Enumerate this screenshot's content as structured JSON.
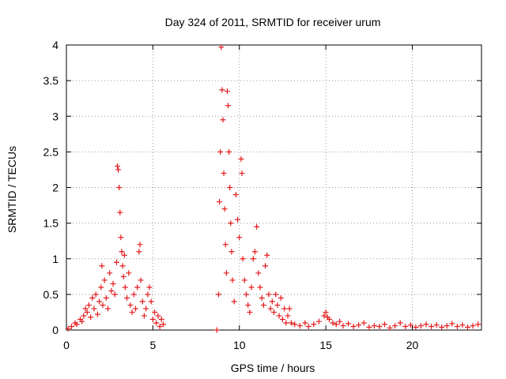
{
  "chart_data": {
    "type": "scatter",
    "title": "Day 324 of 2011, SRMTID for receiver urum",
    "xlabel": "GPS time / hours",
    "ylabel": "SRMTID / TECUs",
    "xlim": [
      0,
      24
    ],
    "ylim": [
      0,
      4
    ],
    "x_ticks": [
      0,
      5,
      10,
      15,
      20
    ],
    "x_tick_labels": [
      "0",
      "5",
      "10",
      "15",
      "20"
    ],
    "y_ticks": [
      0,
      0.5,
      1,
      1.5,
      2,
      2.5,
      3,
      3.5,
      4
    ],
    "y_tick_labels": [
      "0",
      "0.5",
      "1",
      "1.5",
      "2",
      "2.5",
      "3",
      "3.5",
      "4"
    ],
    "grid": true,
    "marker": "+",
    "colors": {
      "series": "#e41a1c",
      "grid": "#999999",
      "axis": "#000000"
    },
    "series": [
      {
        "name": "SRMTID",
        "points": [
          [
            0.1,
            0.02
          ],
          [
            0.3,
            0.05
          ],
          [
            0.5,
            0.1
          ],
          [
            0.6,
            0.08
          ],
          [
            0.8,
            0.15
          ],
          [
            0.9,
            0.12
          ],
          [
            1.0,
            0.2
          ],
          [
            1.1,
            0.3
          ],
          [
            1.2,
            0.25
          ],
          [
            1.3,
            0.35
          ],
          [
            1.4,
            0.18
          ],
          [
            1.5,
            0.45
          ],
          [
            1.6,
            0.3
          ],
          [
            1.7,
            0.5
          ],
          [
            1.8,
            0.22
          ],
          [
            1.9,
            0.4
          ],
          [
            2.0,
            0.6
          ],
          [
            2.05,
            0.9
          ],
          [
            2.1,
            0.35
          ],
          [
            2.2,
            0.7
          ],
          [
            2.3,
            0.45
          ],
          [
            2.4,
            0.3
          ],
          [
            2.5,
            0.8
          ],
          [
            2.6,
            0.55
          ],
          [
            2.7,
            0.65
          ],
          [
            2.8,
            0.5
          ],
          [
            2.9,
            0.95
          ],
          [
            2.95,
            2.3
          ],
          [
            3.0,
            2.25
          ],
          [
            3.05,
            2.0
          ],
          [
            3.1,
            1.65
          ],
          [
            3.15,
            1.3
          ],
          [
            3.2,
            1.1
          ],
          [
            3.25,
            0.9
          ],
          [
            3.3,
            0.75
          ],
          [
            3.35,
            1.05
          ],
          [
            3.4,
            0.6
          ],
          [
            3.5,
            0.45
          ],
          [
            3.6,
            0.8
          ],
          [
            3.7,
            0.35
          ],
          [
            3.8,
            0.25
          ],
          [
            3.9,
            0.5
          ],
          [
            4.0,
            0.3
          ],
          [
            4.1,
            0.6
          ],
          [
            4.2,
            1.1
          ],
          [
            4.25,
            1.2
          ],
          [
            4.3,
            0.7
          ],
          [
            4.4,
            0.4
          ],
          [
            4.5,
            0.2
          ],
          [
            4.6,
            0.3
          ],
          [
            4.7,
            0.5
          ],
          [
            4.8,
            0.6
          ],
          [
            4.9,
            0.4
          ],
          [
            5.0,
            0.15
          ],
          [
            5.1,
            0.25
          ],
          [
            5.2,
            0.1
          ],
          [
            5.3,
            0.2
          ],
          [
            5.4,
            0.05
          ],
          [
            5.5,
            0.15
          ],
          [
            5.6,
            0.08
          ],
          [
            8.7,
            0.0
          ],
          [
            8.8,
            0.5
          ],
          [
            8.85,
            1.8
          ],
          [
            8.9,
            2.5
          ],
          [
            8.95,
            3.97
          ],
          [
            9.0,
            3.37
          ],
          [
            9.05,
            2.95
          ],
          [
            9.1,
            2.2
          ],
          [
            9.15,
            1.7
          ],
          [
            9.2,
            1.2
          ],
          [
            9.25,
            0.8
          ],
          [
            9.3,
            3.35
          ],
          [
            9.35,
            3.15
          ],
          [
            9.4,
            2.5
          ],
          [
            9.45,
            2.0
          ],
          [
            9.5,
            1.5
          ],
          [
            9.55,
            1.1
          ],
          [
            9.6,
            0.7
          ],
          [
            9.7,
            0.4
          ],
          [
            9.8,
            1.9
          ],
          [
            9.9,
            1.55
          ],
          [
            10.0,
            1.3
          ],
          [
            10.1,
            2.4
          ],
          [
            10.15,
            2.2
          ],
          [
            10.2,
            1.0
          ],
          [
            10.3,
            0.7
          ],
          [
            10.4,
            0.5
          ],
          [
            10.5,
            0.35
          ],
          [
            10.6,
            0.25
          ],
          [
            10.7,
            0.6
          ],
          [
            10.8,
            1.0
          ],
          [
            10.9,
            1.1
          ],
          [
            11.0,
            1.45
          ],
          [
            11.1,
            0.8
          ],
          [
            11.2,
            0.6
          ],
          [
            11.3,
            0.45
          ],
          [
            11.4,
            0.35
          ],
          [
            11.5,
            0.9
          ],
          [
            11.6,
            1.05
          ],
          [
            11.7,
            0.5
          ],
          [
            11.8,
            0.3
          ],
          [
            11.9,
            0.4
          ],
          [
            12.0,
            0.25
          ],
          [
            12.1,
            0.5
          ],
          [
            12.2,
            0.35
          ],
          [
            12.3,
            0.2
          ],
          [
            12.4,
            0.45
          ],
          [
            12.5,
            0.15
          ],
          [
            12.6,
            0.3
          ],
          [
            12.7,
            0.1
          ],
          [
            12.8,
            0.2
          ],
          [
            12.9,
            0.3
          ],
          [
            13.0,
            0.1
          ],
          [
            13.2,
            0.08
          ],
          [
            13.5,
            0.06
          ],
          [
            13.8,
            0.1
          ],
          [
            14.0,
            0.05
          ],
          [
            14.3,
            0.08
          ],
          [
            14.6,
            0.12
          ],
          [
            14.9,
            0.2
          ],
          [
            15.0,
            0.25
          ],
          [
            15.1,
            0.18
          ],
          [
            15.2,
            0.15
          ],
          [
            15.4,
            0.1
          ],
          [
            15.6,
            0.08
          ],
          [
            15.8,
            0.12
          ],
          [
            16.0,
            0.06
          ],
          [
            16.3,
            0.09
          ],
          [
            16.6,
            0.05
          ],
          [
            16.9,
            0.07
          ],
          [
            17.2,
            0.1
          ],
          [
            17.5,
            0.04
          ],
          [
            17.8,
            0.06
          ],
          [
            18.1,
            0.05
          ],
          [
            18.4,
            0.08
          ],
          [
            18.7,
            0.03
          ],
          [
            19.0,
            0.06
          ],
          [
            19.3,
            0.1
          ],
          [
            19.6,
            0.05
          ],
          [
            19.9,
            0.07
          ],
          [
            20.2,
            0.04
          ],
          [
            20.5,
            0.06
          ],
          [
            20.8,
            0.08
          ],
          [
            21.1,
            0.05
          ],
          [
            21.4,
            0.07
          ],
          [
            21.7,
            0.04
          ],
          [
            22.0,
            0.06
          ],
          [
            22.3,
            0.09
          ],
          [
            22.6,
            0.05
          ],
          [
            22.9,
            0.07
          ],
          [
            23.2,
            0.04
          ],
          [
            23.5,
            0.06
          ],
          [
            23.8,
            0.08
          ]
        ]
      }
    ]
  }
}
